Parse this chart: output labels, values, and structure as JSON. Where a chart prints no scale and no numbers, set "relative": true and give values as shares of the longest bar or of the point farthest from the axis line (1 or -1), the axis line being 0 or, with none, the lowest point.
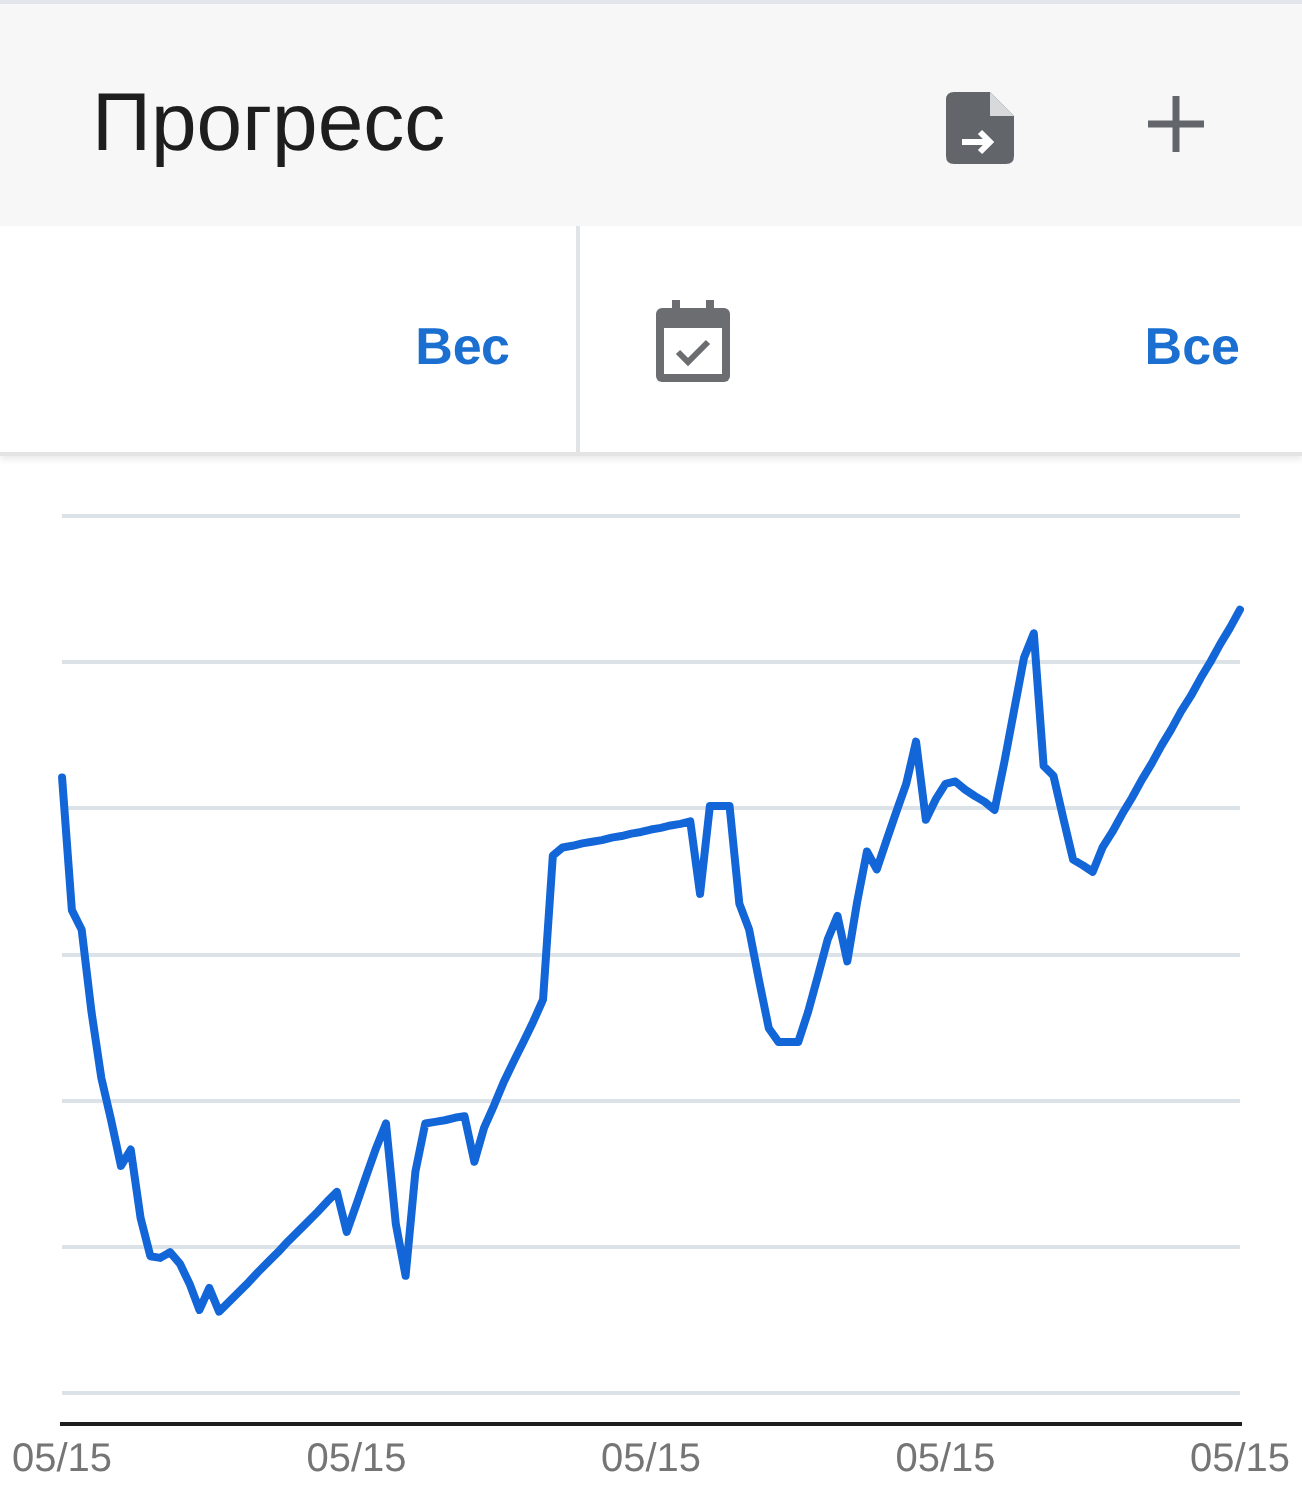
{
  "chart_data": {
    "type": "line",
    "title": "Прогресс",
    "annotations": [
      "Вес",
      "Все"
    ],
    "relative": true,
    "grid": "y",
    "color": "#1266d8",
    "categories": [
      "05/15",
      null,
      null,
      null,
      null,
      null,
      null,
      null,
      null,
      null,
      null,
      null,
      null,
      null,
      null,
      null,
      null,
      null,
      null,
      null,
      null,
      null,
      null,
      null,
      null,
      null,
      null,
      null,
      null,
      null,
      "05/15",
      null,
      null,
      null,
      null,
      null,
      null,
      null,
      null,
      null,
      null,
      null,
      null,
      null,
      null,
      null,
      null,
      null,
      null,
      null,
      null,
      null,
      null,
      null,
      null,
      null,
      null,
      null,
      null,
      null,
      "05/15",
      null,
      null,
      null,
      null,
      null,
      null,
      null,
      null,
      null,
      null,
      null,
      null,
      null,
      null,
      null,
      null,
      null,
      null,
      null,
      null,
      null,
      null,
      null,
      null,
      null,
      null,
      null,
      null,
      null,
      "05/15",
      null,
      null,
      null,
      null,
      null,
      null,
      null,
      null,
      null,
      null,
      null,
      null,
      null,
      null,
      null,
      null,
      null,
      null,
      null,
      null,
      null,
      null,
      null,
      null,
      null,
      null,
      null,
      null,
      null,
      "05/15"
    ],
    "values": [
      0.794,
      0.631,
      0.607,
      0.506,
      0.425,
      0.373,
      0.317,
      0.337,
      0.253,
      0.206,
      0.204,
      0.211,
      0.197,
      0.172,
      0.14,
      0.167,
      0.138,
      0.15,
      0.162,
      0.174,
      0.187,
      0.199,
      0.211,
      0.224,
      0.236,
      0.248,
      0.26,
      0.273,
      0.285,
      0.236,
      0.27,
      0.305,
      0.339,
      0.369,
      0.246,
      0.182,
      0.31,
      0.369,
      0.371,
      0.373,
      0.376,
      0.378,
      0.322,
      0.364,
      0.391,
      0.42,
      0.445,
      0.469,
      0.494,
      0.521,
      0.698,
      0.708,
      0.71,
      0.713,
      0.715,
      0.717,
      0.72,
      0.722,
      0.725,
      0.727,
      0.73,
      0.732,
      0.735,
      0.737,
      0.74,
      0.651,
      0.759,
      0.759,
      0.759,
      0.639,
      0.607,
      0.545,
      0.486,
      0.469,
      0.469,
      0.469,
      0.506,
      0.55,
      0.595,
      0.624,
      0.568,
      0.641,
      0.703,
      0.681,
      0.717,
      0.752,
      0.786,
      0.838,
      0.742,
      0.767,
      0.786,
      0.789,
      0.779,
      0.771,
      0.764,
      0.754,
      0.813,
      0.877,
      0.941,
      0.971,
      0.808,
      0.796,
      0.744,
      0.693,
      0.686,
      0.678,
      0.708,
      0.727,
      0.749,
      0.769,
      0.791,
      0.811,
      0.833,
      0.853,
      0.875,
      0.894,
      0.916,
      0.936,
      0.958,
      0.978,
      1
    ]
  }
}
